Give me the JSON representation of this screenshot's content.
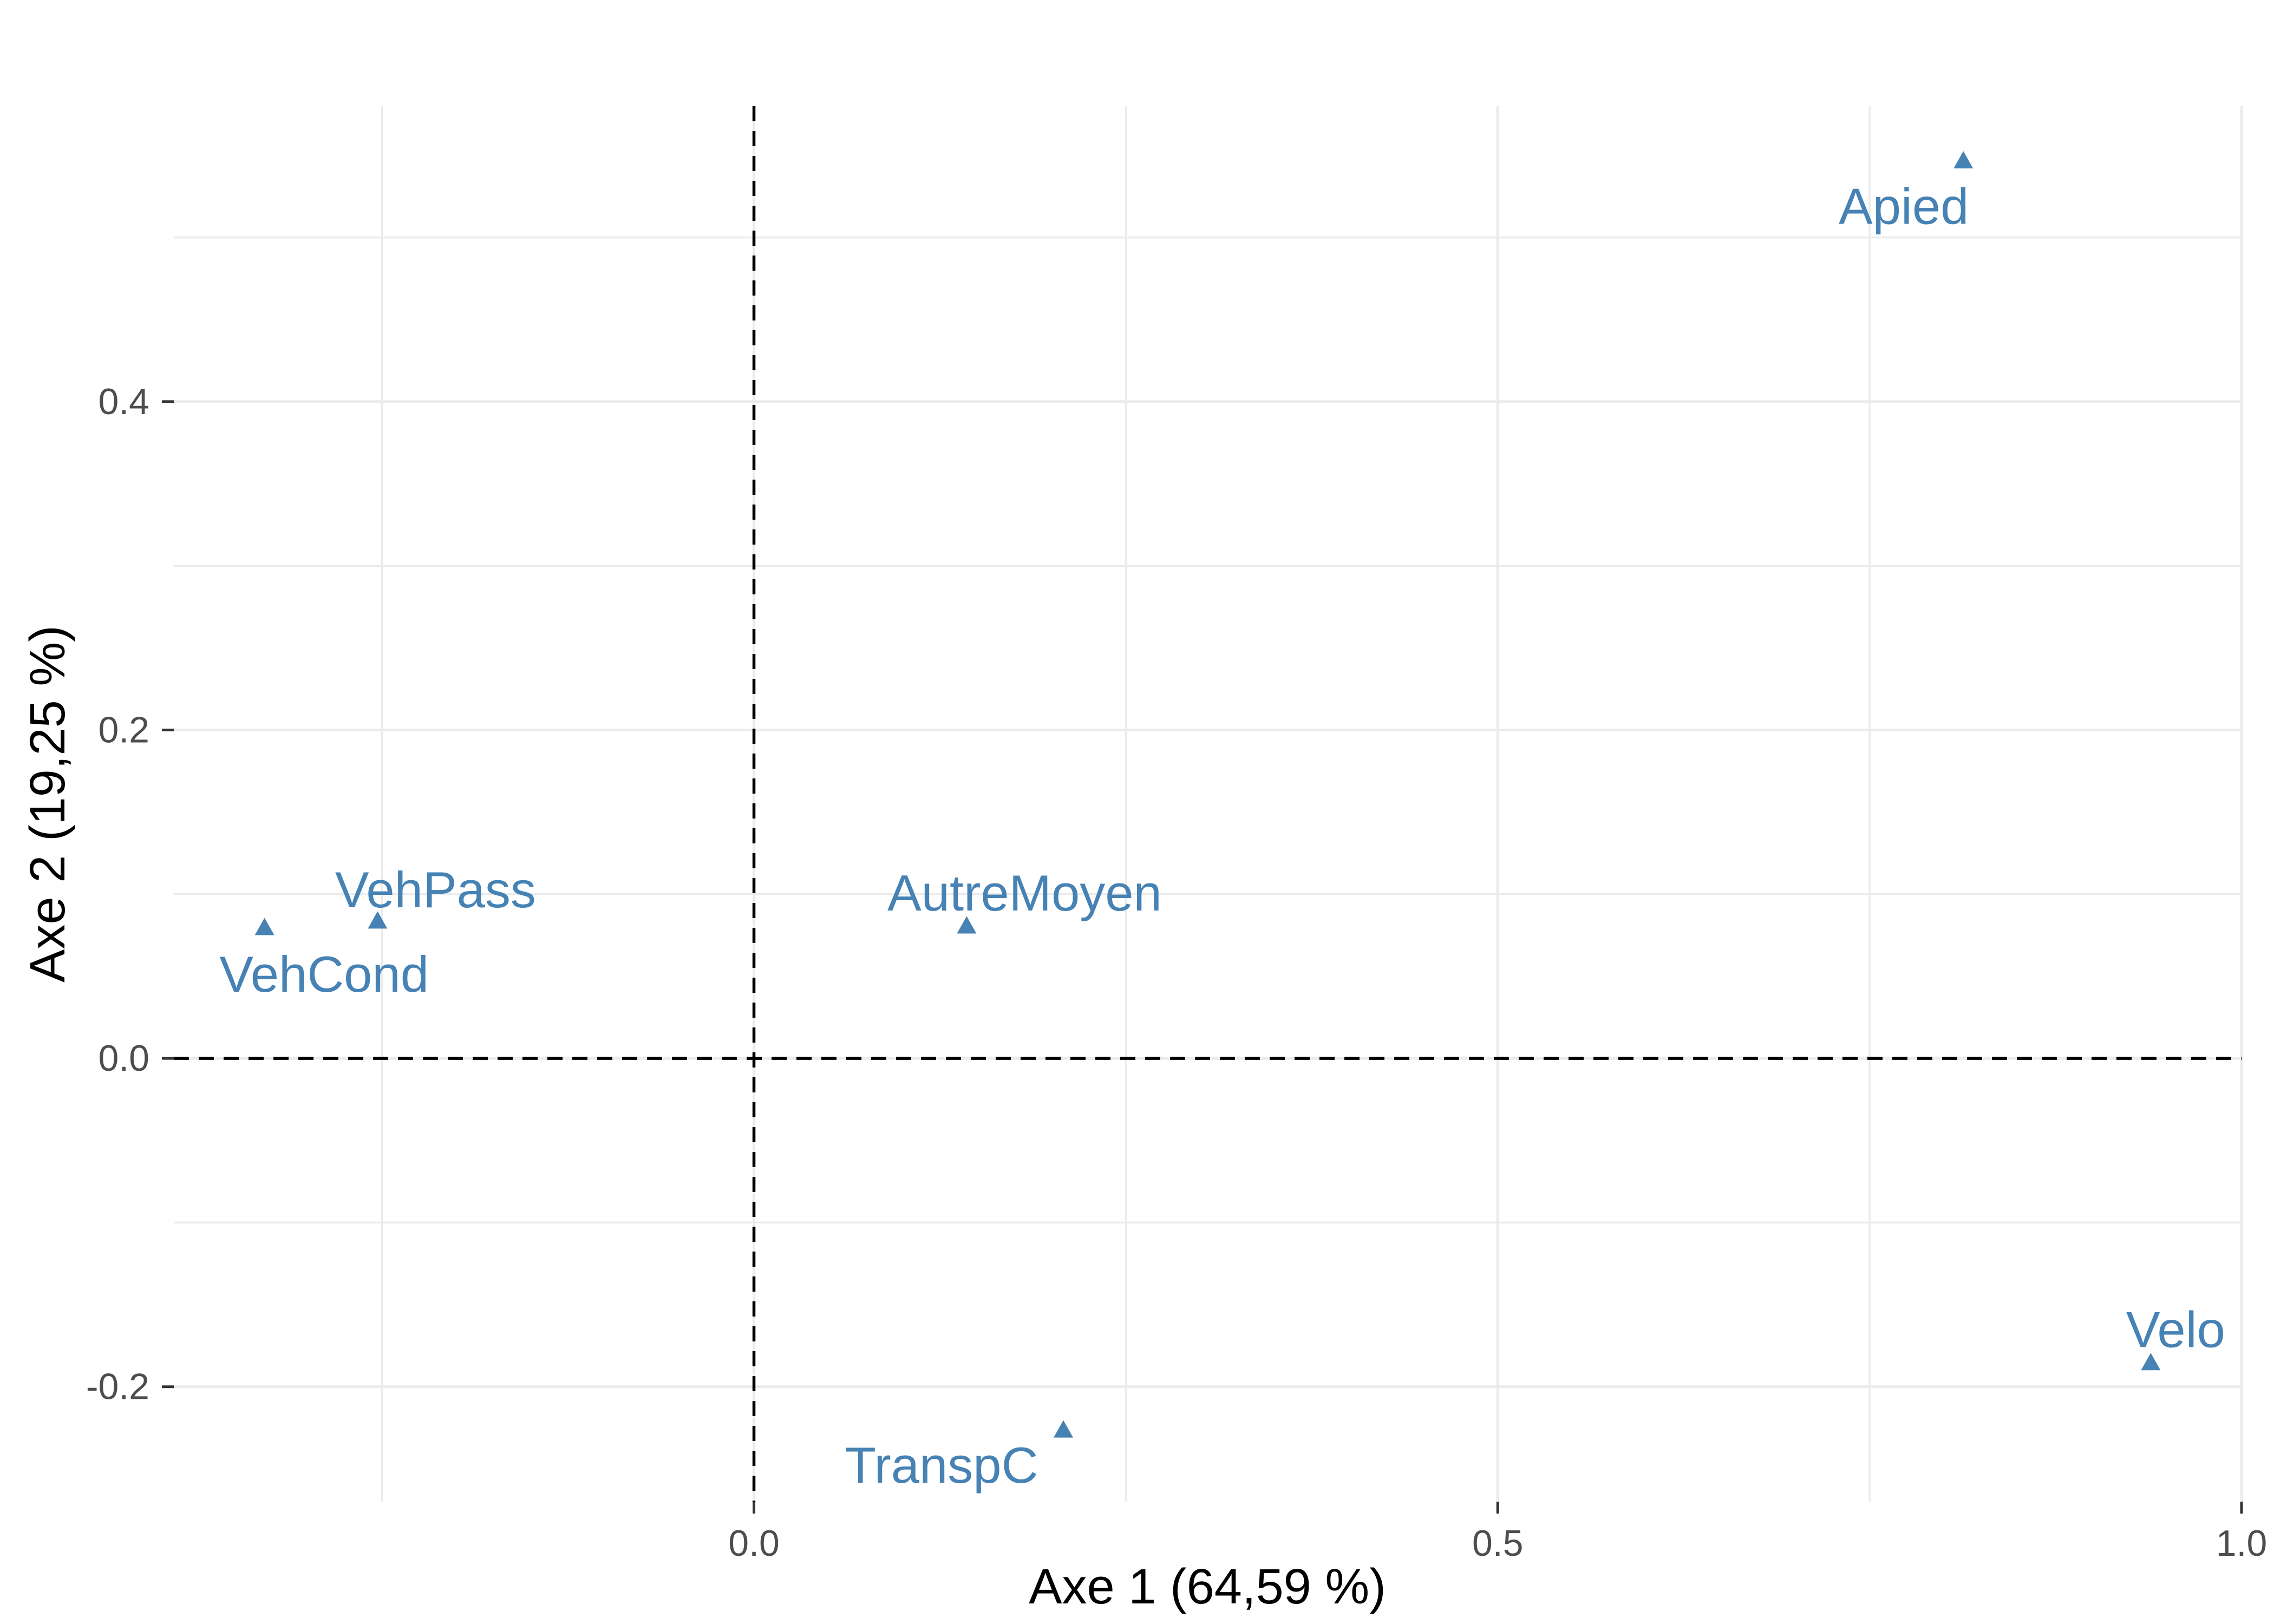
{
  "chart_data": {
    "type": "scatter",
    "xlabel": "Axe 1 (64,59 %)",
    "ylabel": "Axe 2 (19,25 %)",
    "xlim": [
      -0.39,
      1.0
    ],
    "ylim": [
      -0.27,
      0.58
    ],
    "xticks": [
      0,
      0.5,
      1.0
    ],
    "xtick_labels": [
      "0.0",
      "0.5",
      "1.0"
    ],
    "yticks": [
      -0.2,
      0,
      0.2,
      0.4
    ],
    "ytick_labels": [
      "-0.2",
      "0.0",
      "0.2",
      "0.4"
    ],
    "grid": {
      "major": true,
      "minor": true
    },
    "legend": "none",
    "reference_lines": [
      {
        "axis": "x",
        "value": 0,
        "style": "dashed",
        "color": "#000000"
      },
      {
        "axis": "y",
        "value": 0,
        "style": "dashed",
        "color": "#000000"
      }
    ],
    "marker": "triangle",
    "color": "#4682B4",
    "points": [
      {
        "label": "Apied",
        "x": 0.813,
        "y": 0.546
      },
      {
        "label": "VehPass",
        "x": -0.253,
        "y": 0.083
      },
      {
        "label": "VehCond",
        "x": -0.329,
        "y": 0.079
      },
      {
        "label": "AutreMoyen",
        "x": 0.143,
        "y": 0.08
      },
      {
        "label": "TranspC",
        "x": 0.208,
        "y": -0.227
      },
      {
        "label": "Velo",
        "x": 0.939,
        "y": -0.186
      }
    ]
  }
}
